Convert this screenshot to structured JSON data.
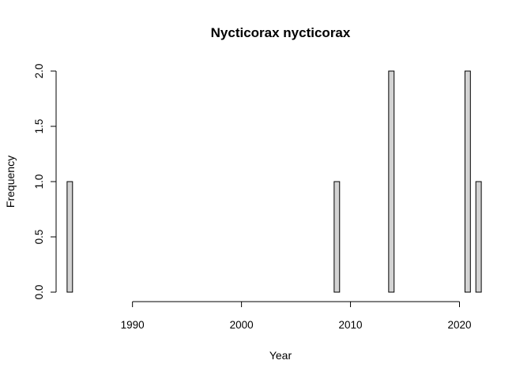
{
  "chart_data": {
    "type": "bar",
    "title": "Nycticorax nycticorax",
    "xlabel": "Year",
    "ylabel": "Frequency",
    "xlim": [
      1983.5,
      2022.5
    ],
    "ylim": [
      0,
      2
    ],
    "x_ticks": [
      1990,
      2000,
      2010,
      2020
    ],
    "y_ticks": [
      "0.0",
      "0.5",
      "1.0",
      "1.5",
      "2.0"
    ],
    "bin_width": 0.5,
    "bins": [
      {
        "start": 1984.0,
        "value": 1
      },
      {
        "start": 2008.5,
        "value": 1
      },
      {
        "start": 2013.5,
        "value": 2
      },
      {
        "start": 2020.5,
        "value": 2
      },
      {
        "start": 2021.5,
        "value": 1
      }
    ],
    "grid": false,
    "legend": "none"
  }
}
